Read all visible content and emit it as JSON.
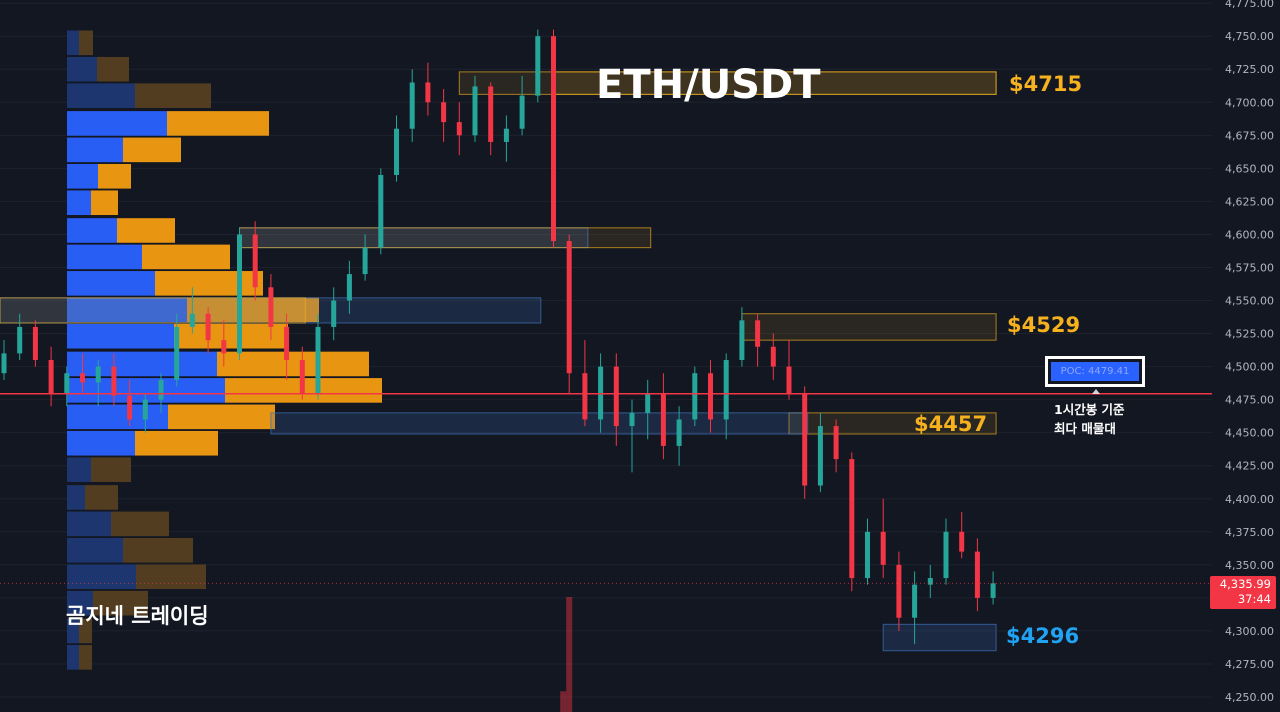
{
  "title": "ETH/USDT",
  "brand": "곰지네 트레이딩",
  "levels": {
    "l4715": "$4715",
    "l4529": "$4529",
    "l4457": "$4457",
    "l4296": "$4296"
  },
  "poc": {
    "label": "POC: 4479.41",
    "price": 4479.41
  },
  "note": {
    "line1": "1시간봉 기준",
    "line2": "최다 매물대"
  },
  "last_price": {
    "value": "4,335.99",
    "countdown": "37:44",
    "price": 4335.99
  },
  "colors": {
    "background": "#131722",
    "up": "#26a69a",
    "down": "#f23645",
    "zone_yellow": "#f5b21e",
    "zone_blue": "#3d6fb5",
    "vp_buy": "#2962ff",
    "vp_sell": "#f39c12",
    "poc_line": "#f23645"
  },
  "chart_data": {
    "type": "candlestick",
    "symbol": "ETH/USDT",
    "timeframe": "1h",
    "y_axis": {
      "ticks": [
        4250,
        4275,
        4300,
        4325,
        4350,
        4375,
        4400,
        4425,
        4450,
        4475,
        4500,
        4525,
        4550,
        4575,
        4600,
        4625,
        4650,
        4675,
        4700,
        4725,
        4750,
        4775
      ],
      "tick_labels": [
        "4,250.00",
        "4,275.00",
        "4,300.00",
        "4,325.00",
        "4,350.00",
        "4,375.00",
        "4,400.00",
        "4,425.00",
        "4,450.00",
        "4,475.00",
        "4,500.00",
        "4,525.00",
        "4,550.00",
        "4,575.00",
        "4,600.00",
        "4,625.00",
        "4,650.00",
        "4,675.00",
        "4,700.00",
        "4,725.00",
        "4,750.00",
        "4,775.00"
      ],
      "range": [
        4243,
        4778
      ]
    },
    "grid": true,
    "horizontal_lines": [
      {
        "name": "poc",
        "price": 4479.41
      },
      {
        "name": "last-price",
        "price": 4335.99
      }
    ],
    "zones": [
      {
        "name": "zone-4715",
        "top": 4723,
        "bottom": 4706,
        "from": 29,
        "to": 63,
        "style": "yellow"
      },
      {
        "name": "zone-4715-ext",
        "top": 4723,
        "bottom": 4706,
        "from": 35,
        "to": 63,
        "style": "yellow-solid"
      },
      {
        "name": "zone-4600-blue",
        "top": 4605,
        "bottom": 4590,
        "from": 15,
        "to": 37,
        "style": "blue"
      },
      {
        "name": "zone-4600-yellow",
        "top": 4605,
        "bottom": 4590,
        "from": 15,
        "to": 41,
        "style": "yellow"
      },
      {
        "name": "zone-4550-blue",
        "top": 4552,
        "bottom": 4533,
        "from": 0,
        "to": 34,
        "style": "blue"
      },
      {
        "name": "zone-4550-yellow",
        "top": 4552,
        "bottom": 4533,
        "from": 0,
        "to": 19,
        "style": "yellow"
      },
      {
        "name": "zone-4529",
        "top": 4540,
        "bottom": 4520,
        "from": 47,
        "to": 63,
        "style": "yellow"
      },
      {
        "name": "zone-4457-yellow",
        "top": 4465,
        "bottom": 4449,
        "from": 50,
        "to": 63,
        "style": "yellow"
      },
      {
        "name": "zone-4457-blue",
        "top": 4465,
        "bottom": 4449,
        "from": 17,
        "to": 51,
        "style": "blue"
      },
      {
        "name": "zone-4296",
        "top": 4305,
        "bottom": 4285,
        "from": 56,
        "to": 63,
        "style": "blue"
      }
    ],
    "volume_profile": [
      {
        "price": 4745,
        "buy": 12,
        "sell": 14
      },
      {
        "price": 4725,
        "buy": 30,
        "sell": 32
      },
      {
        "price": 4705,
        "buy": 68,
        "sell": 76
      },
      {
        "price": 4684,
        "buy": 100,
        "sell": 102
      },
      {
        "price": 4664,
        "buy": 56,
        "sell": 58
      },
      {
        "price": 4644,
        "buy": 31,
        "sell": 33
      },
      {
        "price": 4624,
        "buy": 24,
        "sell": 27
      },
      {
        "price": 4603,
        "buy": 50,
        "sell": 58
      },
      {
        "price": 4583,
        "buy": 75,
        "sell": 88
      },
      {
        "price": 4563,
        "buy": 88,
        "sell": 108
      },
      {
        "price": 4543,
        "buy": 120,
        "sell": 132
      },
      {
        "price": 4523,
        "buy": 107,
        "sell": 114
      },
      {
        "price": 4502,
        "buy": 150,
        "sell": 152
      },
      {
        "price": 4482,
        "buy": 158,
        "sell": 157
      },
      {
        "price": 4462,
        "buy": 101,
        "sell": 107
      },
      {
        "price": 4442,
        "buy": 68,
        "sell": 83
      },
      {
        "price": 4422,
        "buy": 24,
        "sell": 40
      },
      {
        "price": 4401,
        "buy": 18,
        "sell": 33
      },
      {
        "price": 4381,
        "buy": 44,
        "sell": 58
      },
      {
        "price": 4361,
        "buy": 56,
        "sell": 70
      },
      {
        "price": 4341,
        "buy": 69,
        "sell": 70
      },
      {
        "price": 4321,
        "buy": 26,
        "sell": 55
      },
      {
        "price": 4300,
        "buy": 12,
        "sell": 13
      },
      {
        "price": 4280,
        "buy": 12,
        "sell": 13
      }
    ],
    "candles": [
      [
        4495,
        4520,
        4490,
        4510
      ],
      [
        4510,
        4540,
        4505,
        4530
      ],
      [
        4530,
        4535,
        4500,
        4505
      ],
      [
        4505,
        4515,
        4470,
        4480
      ],
      [
        4480,
        4500,
        4470,
        4495
      ],
      [
        4495,
        4510,
        4480,
        4488
      ],
      [
        4488,
        4505,
        4470,
        4500
      ],
      [
        4500,
        4510,
        4470,
        4478
      ],
      [
        4478,
        4490,
        4455,
        4460
      ],
      [
        4460,
        4480,
        4450,
        4475
      ],
      [
        4475,
        4495,
        4465,
        4490
      ],
      [
        4490,
        4540,
        4485,
        4530
      ],
      [
        4530,
        4560,
        4525,
        4540
      ],
      [
        4540,
        4545,
        4510,
        4520
      ],
      [
        4520,
        4535,
        4500,
        4510
      ],
      [
        4510,
        4605,
        4505,
        4600
      ],
      [
        4600,
        4610,
        4550,
        4560
      ],
      [
        4560,
        4570,
        4520,
        4530
      ],
      [
        4530,
        4540,
        4490,
        4505
      ],
      [
        4505,
        4515,
        4475,
        4480
      ],
      [
        4480,
        4540,
        4475,
        4530
      ],
      [
        4530,
        4560,
        4520,
        4550
      ],
      [
        4550,
        4580,
        4540,
        4570
      ],
      [
        4570,
        4600,
        4565,
        4590
      ],
      [
        4590,
        4650,
        4585,
        4645
      ],
      [
        4645,
        4690,
        4640,
        4680
      ],
      [
        4680,
        4725,
        4670,
        4715
      ],
      [
        4715,
        4730,
        4690,
        4700
      ],
      [
        4700,
        4710,
        4670,
        4685
      ],
      [
        4685,
        4700,
        4660,
        4675
      ],
      [
        4675,
        4720,
        4670,
        4712
      ],
      [
        4712,
        4715,
        4660,
        4670
      ],
      [
        4670,
        4690,
        4655,
        4680
      ],
      [
        4680,
        4720,
        4675,
        4705
      ],
      [
        4705,
        4755,
        4700,
        4750
      ],
      [
        4750,
        4755,
        4590,
        4595
      ],
      [
        4595,
        4600,
        4480,
        4495
      ],
      [
        4495,
        4520,
        4455,
        4460
      ],
      [
        4460,
        4510,
        4450,
        4500
      ],
      [
        4500,
        4510,
        4440,
        4455
      ],
      [
        4455,
        4475,
        4420,
        4465
      ],
      [
        4465,
        4490,
        4445,
        4480
      ],
      [
        4480,
        4495,
        4430,
        4440
      ],
      [
        4440,
        4470,
        4425,
        4460
      ],
      [
        4460,
        4500,
        4455,
        4495
      ],
      [
        4495,
        4505,
        4450,
        4460
      ],
      [
        4460,
        4510,
        4445,
        4505
      ],
      [
        4505,
        4545,
        4500,
        4535
      ],
      [
        4535,
        4540,
        4500,
        4515
      ],
      [
        4515,
        4525,
        4490,
        4500
      ],
      [
        4500,
        4520,
        4475,
        4480
      ],
      [
        4480,
        4485,
        4400,
        4410
      ],
      [
        4410,
        4465,
        4405,
        4455
      ],
      [
        4455,
        4460,
        4420,
        4430
      ],
      [
        4430,
        4435,
        4330,
        4340
      ],
      [
        4340,
        4385,
        4335,
        4375
      ],
      [
        4375,
        4400,
        4340,
        4350
      ],
      [
        4350,
        4360,
        4300,
        4310
      ],
      [
        4310,
        4345,
        4290,
        4335
      ],
      [
        4335,
        4350,
        4325,
        4340
      ],
      [
        4340,
        4385,
        4335,
        4375
      ],
      [
        4375,
        4390,
        4355,
        4360
      ],
      [
        4360,
        4370,
        4315,
        4325
      ],
      [
        4325,
        4345,
        4320,
        4336
      ]
    ],
    "volume_bars": [
      {
        "index": 36,
        "height_relative": 0.18
      },
      {
        "index": 36,
        "height_relative": 1.0
      }
    ]
  }
}
